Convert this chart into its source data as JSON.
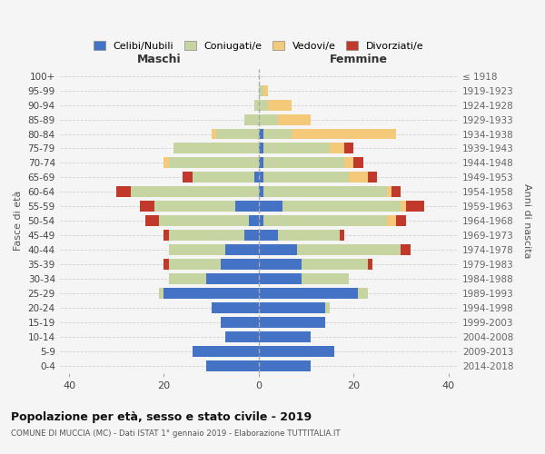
{
  "age_groups": [
    "0-4",
    "5-9",
    "10-14",
    "15-19",
    "20-24",
    "25-29",
    "30-34",
    "35-39",
    "40-44",
    "45-49",
    "50-54",
    "55-59",
    "60-64",
    "65-69",
    "70-74",
    "75-79",
    "80-84",
    "85-89",
    "90-94",
    "95-99",
    "100+"
  ],
  "birth_years": [
    "2014-2018",
    "2009-2013",
    "2004-2008",
    "1999-2003",
    "1994-1998",
    "1989-1993",
    "1984-1988",
    "1979-1983",
    "1974-1978",
    "1969-1973",
    "1964-1968",
    "1959-1963",
    "1954-1958",
    "1949-1953",
    "1944-1948",
    "1939-1943",
    "1934-1938",
    "1929-1933",
    "1924-1928",
    "1919-1923",
    "≤ 1918"
  ],
  "males": {
    "celibi": [
      11,
      14,
      7,
      8,
      10,
      20,
      11,
      8,
      7,
      3,
      2,
      5,
      0,
      1,
      0,
      0,
      0,
      0,
      0,
      0,
      0
    ],
    "coniugati": [
      0,
      0,
      0,
      0,
      0,
      1,
      8,
      11,
      12,
      16,
      19,
      17,
      27,
      13,
      19,
      18,
      9,
      3,
      1,
      0,
      0
    ],
    "vedovi": [
      0,
      0,
      0,
      0,
      0,
      0,
      0,
      0,
      0,
      0,
      0,
      0,
      0,
      0,
      1,
      0,
      1,
      0,
      0,
      0,
      0
    ],
    "divorziati": [
      0,
      0,
      0,
      0,
      0,
      0,
      0,
      1,
      0,
      1,
      3,
      3,
      3,
      2,
      0,
      0,
      0,
      0,
      0,
      0,
      0
    ]
  },
  "females": {
    "nubili": [
      11,
      16,
      11,
      14,
      14,
      21,
      9,
      9,
      8,
      4,
      1,
      5,
      1,
      1,
      1,
      1,
      1,
      0,
      0,
      0,
      0
    ],
    "coniugate": [
      0,
      0,
      0,
      0,
      1,
      2,
      10,
      14,
      22,
      13,
      26,
      25,
      26,
      18,
      17,
      14,
      6,
      4,
      2,
      1,
      0
    ],
    "vedove": [
      0,
      0,
      0,
      0,
      0,
      0,
      0,
      0,
      0,
      0,
      2,
      1,
      1,
      4,
      2,
      3,
      22,
      7,
      5,
      1,
      0
    ],
    "divorziate": [
      0,
      0,
      0,
      0,
      0,
      0,
      0,
      1,
      2,
      1,
      2,
      4,
      2,
      2,
      2,
      2,
      0,
      0,
      0,
      0,
      0
    ]
  },
  "colors": {
    "celibi_nubili": "#4472C4",
    "coniugati": "#C5D4A0",
    "vedovi": "#F5C97A",
    "divorziati": "#C0392B"
  },
  "title": "Popolazione per età, sesso e stato civile - 2019",
  "subtitle": "COMUNE DI MUCCIA (MC) - Dati ISTAT 1° gennaio 2019 - Elaborazione TUTTITALIA.IT",
  "ylabel_left": "Fasce di età",
  "ylabel_right": "Anni di nascita",
  "xlabel_left": "Maschi",
  "xlabel_right": "Femmine",
  "xlim": 42,
  "bg_color": "#f5f5f5",
  "plot_bg": "#f5f5f5",
  "grid_color": "#cccccc",
  "bar_height": 0.75
}
